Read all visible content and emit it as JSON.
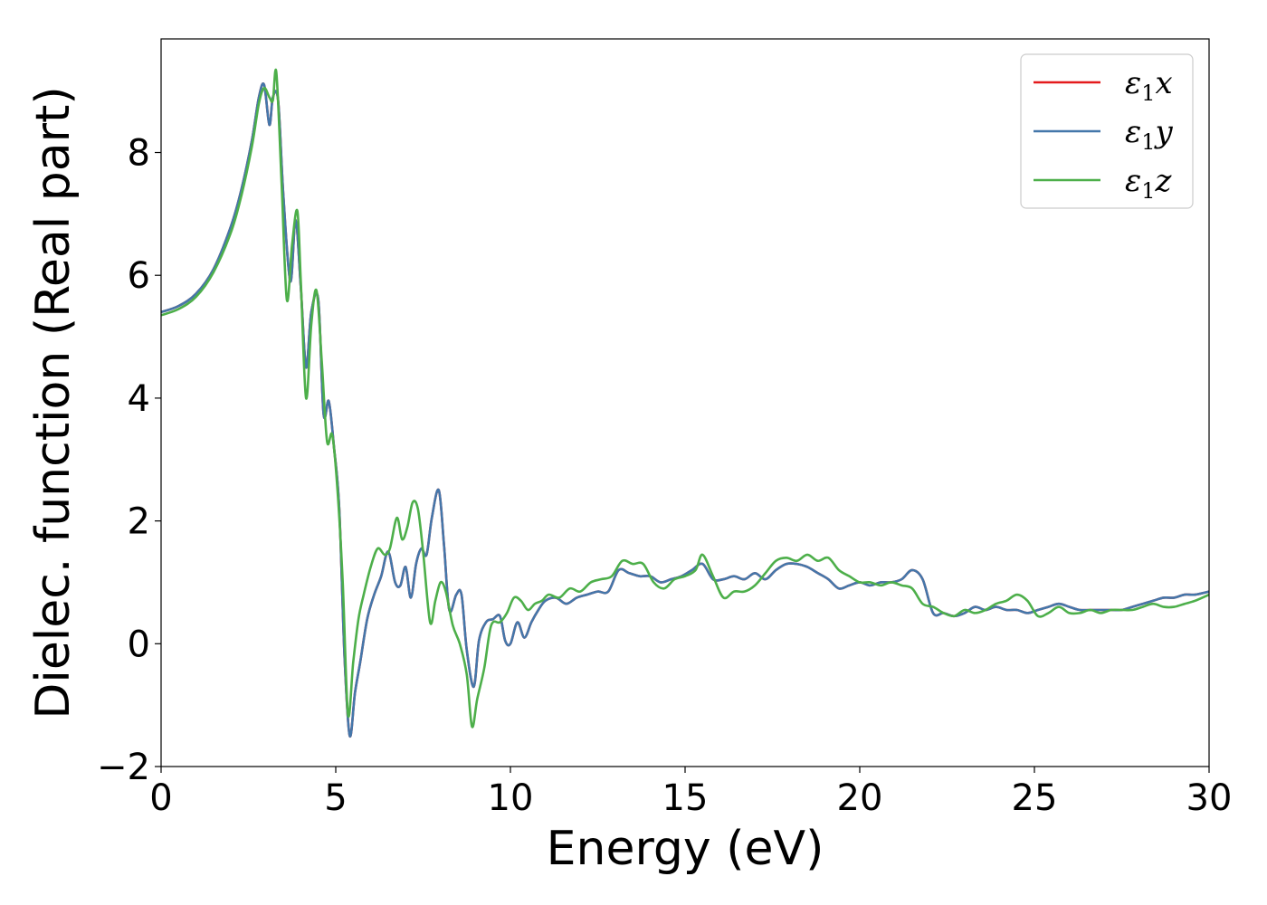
{
  "chart_data": {
    "type": "line",
    "title": "",
    "xlabel": "Energy (eV)",
    "ylabel": "Dielec. function (Real part)",
    "xlim": [
      0,
      30
    ],
    "ylim": [
      -2,
      9.85
    ],
    "xticks": [
      0,
      5,
      10,
      15,
      20,
      25,
      30
    ],
    "yticks": [
      -2,
      0,
      2,
      4,
      6,
      8
    ],
    "xtick_labels": [
      "0",
      "5",
      "10",
      "15",
      "20",
      "25",
      "30"
    ],
    "ytick_labels": [
      "−2",
      "0",
      "2",
      "4",
      "6",
      "8"
    ],
    "grid": false,
    "legend_position": "top-right",
    "series": [
      {
        "name": "x",
        "legend_symbol": "ε",
        "legend_subscript": "1",
        "color": "#e41a1c",
        "x": [
          0,
          0.5,
          1,
          1.5,
          2,
          2.3,
          2.6,
          2.8,
          2.95,
          3.1,
          3.2,
          3.35,
          3.5,
          3.7,
          3.85,
          4.0,
          4.15,
          4.3,
          4.5,
          4.65,
          4.8,
          4.95,
          5.1,
          5.25,
          5.4,
          5.55,
          5.7,
          5.9,
          6.1,
          6.3,
          6.5,
          6.7,
          6.85,
          7.0,
          7.15,
          7.3,
          7.45,
          7.6,
          7.75,
          7.95,
          8.1,
          8.25,
          8.45,
          8.6,
          8.75,
          8.95,
          9.1,
          9.3,
          9.5,
          9.7,
          9.85,
          10.0,
          10.2,
          10.4,
          10.6,
          10.8,
          11.0,
          11.3,
          11.6,
          11.9,
          12.2,
          12.5,
          12.8,
          13.1,
          13.4,
          13.7,
          14.0,
          14.3,
          14.6,
          14.9,
          15.2,
          15.5,
          15.8,
          16.1,
          16.4,
          16.7,
          17.0,
          17.3,
          17.6,
          17.9,
          18.2,
          18.5,
          18.8,
          19.1,
          19.4,
          19.7,
          20.0,
          20.3,
          20.6,
          20.9,
          21.2,
          21.5,
          21.8,
          22.1,
          22.4,
          22.7,
          23.0,
          23.3,
          23.6,
          23.9,
          24.2,
          24.5,
          24.8,
          25.1,
          25.4,
          25.7,
          26.0,
          26.3,
          26.6,
          26.9,
          27.2,
          27.5,
          27.8,
          28.1,
          28.4,
          28.7,
          29.0,
          29.3,
          29.6,
          30.0
        ],
        "y": [
          5.4,
          5.5,
          5.7,
          6.1,
          6.8,
          7.4,
          8.2,
          8.9,
          9.1,
          8.45,
          8.9,
          8.85,
          7.3,
          5.9,
          6.9,
          5.8,
          4.5,
          5.4,
          5.6,
          3.75,
          3.95,
          3.2,
          2.2,
          -0.2,
          -1.5,
          -0.8,
          -0.3,
          0.4,
          0.8,
          1.1,
          1.5,
          1.0,
          0.95,
          1.25,
          0.75,
          1.3,
          1.55,
          1.45,
          2.05,
          2.5,
          1.6,
          0.55,
          0.8,
          0.8,
          -0.1,
          -0.7,
          0.05,
          0.35,
          0.4,
          0.45,
          0.05,
          0.0,
          0.35,
          0.1,
          0.35,
          0.55,
          0.7,
          0.75,
          0.65,
          0.75,
          0.8,
          0.85,
          0.85,
          1.2,
          1.15,
          1.1,
          1.1,
          1.0,
          1.05,
          1.1,
          1.2,
          1.3,
          1.05,
          1.05,
          1.1,
          1.05,
          1.15,
          1.05,
          1.2,
          1.3,
          1.3,
          1.25,
          1.15,
          1.05,
          0.9,
          0.95,
          1.0,
          0.95,
          1.0,
          1.0,
          1.05,
          1.2,
          1.05,
          0.5,
          0.5,
          0.45,
          0.5,
          0.6,
          0.55,
          0.6,
          0.55,
          0.55,
          0.5,
          0.55,
          0.6,
          0.65,
          0.6,
          0.55,
          0.55,
          0.55,
          0.55,
          0.55,
          0.6,
          0.65,
          0.7,
          0.75,
          0.75,
          0.8,
          0.8,
          0.85
        ]
      },
      {
        "name": "y",
        "legend_symbol": "ε",
        "legend_subscript": "1",
        "color": "#4477aa",
        "x": [
          0,
          0.5,
          1,
          1.5,
          2,
          2.3,
          2.6,
          2.8,
          2.95,
          3.1,
          3.2,
          3.35,
          3.5,
          3.7,
          3.85,
          4.0,
          4.15,
          4.3,
          4.5,
          4.65,
          4.8,
          4.95,
          5.1,
          5.25,
          5.4,
          5.55,
          5.7,
          5.9,
          6.1,
          6.3,
          6.5,
          6.7,
          6.85,
          7.0,
          7.15,
          7.3,
          7.45,
          7.6,
          7.75,
          7.95,
          8.1,
          8.25,
          8.45,
          8.6,
          8.75,
          8.95,
          9.1,
          9.3,
          9.5,
          9.7,
          9.85,
          10.0,
          10.2,
          10.4,
          10.6,
          10.8,
          11.0,
          11.3,
          11.6,
          11.9,
          12.2,
          12.5,
          12.8,
          13.1,
          13.4,
          13.7,
          14.0,
          14.3,
          14.6,
          14.9,
          15.2,
          15.5,
          15.8,
          16.1,
          16.4,
          16.7,
          17.0,
          17.3,
          17.6,
          17.9,
          18.2,
          18.5,
          18.8,
          19.1,
          19.4,
          19.7,
          20.0,
          20.3,
          20.6,
          20.9,
          21.2,
          21.5,
          21.8,
          22.1,
          22.4,
          22.7,
          23.0,
          23.3,
          23.6,
          23.9,
          24.2,
          24.5,
          24.8,
          25.1,
          25.4,
          25.7,
          26.0,
          26.3,
          26.6,
          26.9,
          27.2,
          27.5,
          27.8,
          28.1,
          28.4,
          28.7,
          29.0,
          29.3,
          29.6,
          30.0
        ],
        "y": [
          5.4,
          5.5,
          5.7,
          6.1,
          6.8,
          7.4,
          8.2,
          8.9,
          9.1,
          8.45,
          8.9,
          8.85,
          7.3,
          5.9,
          6.9,
          5.8,
          4.5,
          5.4,
          5.6,
          3.75,
          3.95,
          3.2,
          2.2,
          -0.2,
          -1.5,
          -0.8,
          -0.3,
          0.4,
          0.8,
          1.1,
          1.5,
          1.0,
          0.95,
          1.25,
          0.75,
          1.3,
          1.55,
          1.45,
          2.05,
          2.5,
          1.6,
          0.55,
          0.8,
          0.8,
          -0.1,
          -0.7,
          0.05,
          0.35,
          0.4,
          0.45,
          0.05,
          0.0,
          0.35,
          0.1,
          0.35,
          0.55,
          0.7,
          0.75,
          0.65,
          0.75,
          0.8,
          0.85,
          0.85,
          1.2,
          1.15,
          1.1,
          1.1,
          1.0,
          1.05,
          1.1,
          1.2,
          1.3,
          1.05,
          1.05,
          1.1,
          1.05,
          1.15,
          1.05,
          1.2,
          1.3,
          1.3,
          1.25,
          1.15,
          1.05,
          0.9,
          0.95,
          1.0,
          0.95,
          1.0,
          1.0,
          1.05,
          1.2,
          1.05,
          0.5,
          0.5,
          0.45,
          0.5,
          0.6,
          0.55,
          0.6,
          0.55,
          0.55,
          0.5,
          0.55,
          0.6,
          0.65,
          0.6,
          0.55,
          0.55,
          0.55,
          0.55,
          0.55,
          0.6,
          0.65,
          0.7,
          0.75,
          0.75,
          0.8,
          0.8,
          0.85
        ]
      },
      {
        "name": "z",
        "legend_symbol": "ε",
        "legend_subscript": "1",
        "color": "#4daf4a",
        "x": [
          0,
          0.5,
          1,
          1.5,
          2,
          2.3,
          2.6,
          2.8,
          2.95,
          3.1,
          3.2,
          3.3,
          3.45,
          3.6,
          3.75,
          3.9,
          4.0,
          4.15,
          4.3,
          4.45,
          4.6,
          4.75,
          4.9,
          5.05,
          5.2,
          5.35,
          5.5,
          5.65,
          5.8,
          6.0,
          6.2,
          6.4,
          6.55,
          6.75,
          6.9,
          7.05,
          7.2,
          7.35,
          7.5,
          7.7,
          7.85,
          8.0,
          8.15,
          8.35,
          8.55,
          8.75,
          8.9,
          9.05,
          9.25,
          9.45,
          9.7,
          9.9,
          10.1,
          10.3,
          10.5,
          10.7,
          10.9,
          11.1,
          11.4,
          11.7,
          12.0,
          12.3,
          12.6,
          12.9,
          13.2,
          13.5,
          13.8,
          14.1,
          14.4,
          14.7,
          15.0,
          15.3,
          15.5,
          15.8,
          16.1,
          16.4,
          16.7,
          17.0,
          17.3,
          17.6,
          17.9,
          18.2,
          18.5,
          18.8,
          19.1,
          19.4,
          19.7,
          20.0,
          20.3,
          20.6,
          20.9,
          21.2,
          21.5,
          21.8,
          22.1,
          22.4,
          22.7,
          23.0,
          23.3,
          23.6,
          23.9,
          24.2,
          24.5,
          24.8,
          25.1,
          25.4,
          25.7,
          26.0,
          26.3,
          26.6,
          26.9,
          27.2,
          27.5,
          27.8,
          28.1,
          28.4,
          28.7,
          29.0,
          29.3,
          29.6,
          30.0
        ],
        "y": [
          5.35,
          5.45,
          5.65,
          6.05,
          6.7,
          7.3,
          8.1,
          8.8,
          9.05,
          8.9,
          8.85,
          9.3,
          7.5,
          5.6,
          6.5,
          7.05,
          5.9,
          4.0,
          5.2,
          5.75,
          4.6,
          3.3,
          3.4,
          2.5,
          1.0,
          -1.15,
          -0.3,
          0.4,
          0.8,
          1.25,
          1.55,
          1.45,
          1.55,
          2.05,
          1.7,
          1.9,
          2.3,
          2.2,
          1.5,
          0.35,
          0.7,
          1.0,
          0.85,
          0.3,
          0.0,
          -0.5,
          -1.35,
          -0.9,
          -0.4,
          0.3,
          0.35,
          0.5,
          0.75,
          0.7,
          0.55,
          0.65,
          0.7,
          0.8,
          0.75,
          0.9,
          0.85,
          1.0,
          1.05,
          1.1,
          1.35,
          1.3,
          1.3,
          1.0,
          0.9,
          1.05,
          1.1,
          1.2,
          1.45,
          1.1,
          0.75,
          0.85,
          0.85,
          0.95,
          1.15,
          1.35,
          1.4,
          1.35,
          1.45,
          1.35,
          1.4,
          1.2,
          1.1,
          1.0,
          1.0,
          0.95,
          1.0,
          0.95,
          0.9,
          0.65,
          0.6,
          0.5,
          0.45,
          0.55,
          0.5,
          0.55,
          0.65,
          0.7,
          0.8,
          0.7,
          0.45,
          0.5,
          0.6,
          0.5,
          0.5,
          0.55,
          0.5,
          0.55,
          0.55,
          0.55,
          0.6,
          0.65,
          0.6,
          0.6,
          0.65,
          0.7,
          0.8
        ]
      }
    ]
  }
}
